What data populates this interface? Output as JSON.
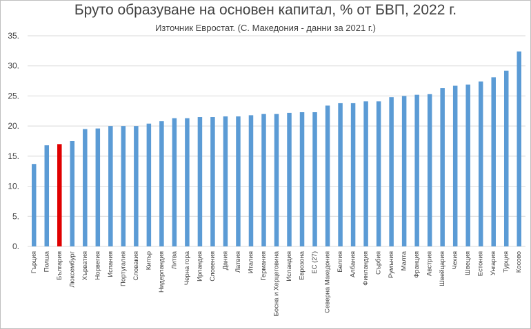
{
  "chart_data": {
    "type": "bar",
    "title": "Бруто образуване на основен капитал, % от БВП, 2022 г.",
    "subtitle": "Източник Евростат. (С. Македония  - данни за 2021 г.)",
    "categories": [
      "Гърция",
      "Полша",
      "България",
      "Люксембург",
      "Хърватия",
      "Норвегия",
      "Испания",
      "Португалия",
      "Словакия",
      "Кипър",
      "Нидерландия",
      "Литва",
      "Черна гора",
      "Ирландия",
      "Словения",
      "Дания",
      "Латвия",
      "Италия",
      "Германия",
      "Босна и Херцеговина",
      "Исландия",
      "Еврозона",
      "ЕС (27)",
      "Северна Македония",
      "Белгия",
      "Албания",
      "Финландия",
      "Сърбия",
      "Румъния",
      "Малта",
      "Франция",
      "Австрия",
      "Швейцария",
      "Чехия",
      "Швеция",
      "Естония",
      "Унгария",
      "Турция",
      "Косово"
    ],
    "values": [
      13.7,
      16.8,
      17.0,
      17.5,
      19.5,
      19.6,
      20.0,
      20.0,
      20.0,
      20.4,
      20.8,
      21.3,
      21.3,
      21.5,
      21.5,
      21.6,
      21.6,
      21.8,
      22.0,
      22.0,
      22.2,
      22.3,
      22.3,
      23.4,
      23.8,
      23.8,
      24.1,
      24.1,
      24.8,
      25.0,
      25.2,
      25.3,
      26.3,
      26.7,
      26.9,
      27.4,
      28.1,
      29.2,
      32.4
    ],
    "highlight": "България",
    "ylim": [
      0,
      35
    ],
    "yticks": [
      "0.",
      "5.",
      "10.",
      "15.",
      "20.",
      "25.",
      "30.",
      "35."
    ],
    "grid": true,
    "colors": {
      "bar": "#5b9bd5",
      "highlight": "#e00000",
      "grid": "#d9d9d9"
    }
  }
}
